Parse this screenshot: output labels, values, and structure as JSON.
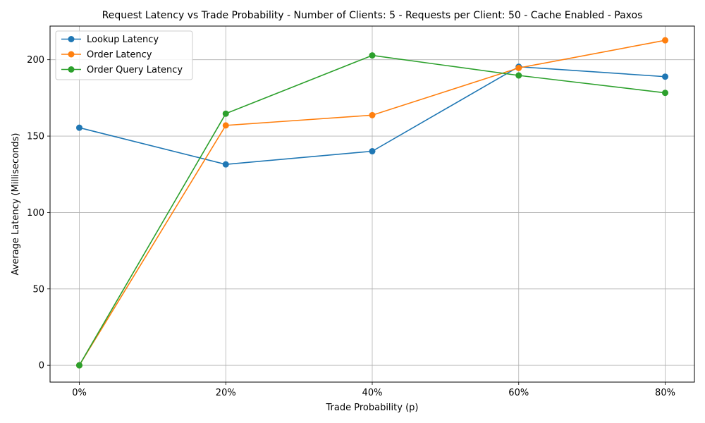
{
  "chart_data": {
    "type": "line",
    "title": "Request Latency vs Trade Probability - Number of Clients: 5 - Requests per Client: 50 - Cache Enabled - Paxos",
    "xlabel": "Trade Probability (p)",
    "ylabel": "Average Latency (Milliseconds)",
    "categories": [
      "0%",
      "20%",
      "40%",
      "60%",
      "80%"
    ],
    "yticks": [
      0,
      50,
      100,
      150,
      200
    ],
    "ylim": [
      -11,
      222
    ],
    "grid": true,
    "legend_position": "upper-left",
    "series": [
      {
        "name": "Lookup Latency",
        "color": "#1f77b4",
        "values": [
          155.5,
          131.5,
          140.1,
          195.4,
          188.9
        ]
      },
      {
        "name": "Order Latency",
        "color": "#ff7f0e",
        "values": [
          0,
          157.0,
          163.7,
          194.6,
          212.7
        ]
      },
      {
        "name": "Order Query Latency",
        "color": "#2ca02c",
        "values": [
          0,
          164.7,
          202.8,
          189.7,
          178.3
        ]
      }
    ]
  }
}
